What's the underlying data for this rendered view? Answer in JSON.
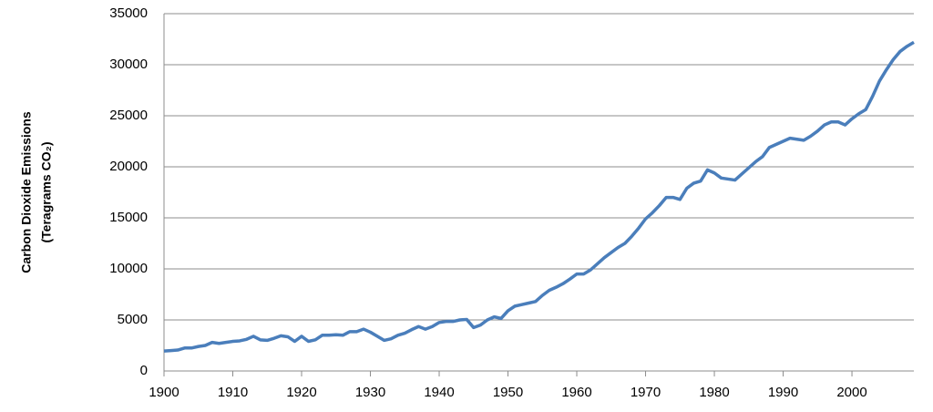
{
  "chart_data": {
    "type": "line",
    "y_label": [
      "Carbon Dioxide Emissions",
      "(Teragrams CO₂)"
    ],
    "x": [
      1900,
      1901,
      1902,
      1903,
      1904,
      1905,
      1906,
      1907,
      1908,
      1909,
      1910,
      1911,
      1912,
      1913,
      1914,
      1915,
      1916,
      1917,
      1918,
      1919,
      1920,
      1921,
      1922,
      1923,
      1924,
      1925,
      1926,
      1927,
      1928,
      1929,
      1930,
      1931,
      1932,
      1933,
      1934,
      1935,
      1936,
      1937,
      1938,
      1939,
      1940,
      1941,
      1942,
      1943,
      1944,
      1945,
      1946,
      1947,
      1948,
      1949,
      1950,
      1951,
      1952,
      1953,
      1954,
      1955,
      1956,
      1957,
      1958,
      1959,
      1960,
      1961,
      1962,
      1963,
      1964,
      1965,
      1966,
      1967,
      1968,
      1969,
      1970,
      1971,
      1972,
      1973,
      1974,
      1975,
      1976,
      1977,
      1978,
      1979,
      1980,
      1981,
      1982,
      1983,
      1984,
      1985,
      1986,
      1987,
      1988,
      1989,
      1990,
      1991,
      1992,
      1993,
      1994,
      1995,
      1996,
      1997,
      1998,
      1999,
      2000,
      2001,
      2002,
      2003,
      2004,
      2005,
      2006,
      2007,
      2008,
      2009
    ],
    "series": [
      {
        "name": "Carbon Dioxide Emissions",
        "color": "#4a7ebb",
        "values": [
          1950,
          2000,
          2050,
          2250,
          2250,
          2400,
          2500,
          2800,
          2700,
          2800,
          2900,
          2950,
          3100,
          3400,
          3050,
          3000,
          3200,
          3450,
          3350,
          2900,
          3400,
          2900,
          3050,
          3500,
          3500,
          3550,
          3500,
          3850,
          3850,
          4100,
          3800,
          3400,
          3000,
          3150,
          3500,
          3700,
          4050,
          4350,
          4100,
          4350,
          4750,
          4850,
          4850,
          5000,
          5050,
          4250,
          4500,
          5000,
          5300,
          5150,
          5900,
          6350,
          6500,
          6650,
          6800,
          7400,
          7900,
          8200,
          8550,
          9000,
          9500,
          9500,
          9900,
          10500,
          11100,
          11600,
          12100,
          12500,
          13200,
          14000,
          14900,
          15500,
          16200,
          17000,
          17000,
          16800,
          17900,
          18400,
          18600,
          19700,
          19400,
          18900,
          18800,
          18700,
          19300,
          19900,
          20500,
          21000,
          21900,
          22200,
          22500,
          22800,
          22700,
          22600,
          23000,
          23500,
          24100,
          24400,
          24400,
          24100,
          24700,
          25200,
          25600,
          26900,
          28400,
          29500,
          30500,
          31300,
          31800,
          32200
        ]
      }
    ],
    "xlim": [
      1900,
      2009
    ],
    "xticks": [
      1900,
      1910,
      1920,
      1930,
      1940,
      1950,
      1960,
      1970,
      1980,
      1990,
      2000
    ],
    "ylim": [
      0,
      35000
    ],
    "yticks": [
      0,
      5000,
      10000,
      15000,
      20000,
      25000,
      30000,
      35000
    ],
    "grid": true
  }
}
